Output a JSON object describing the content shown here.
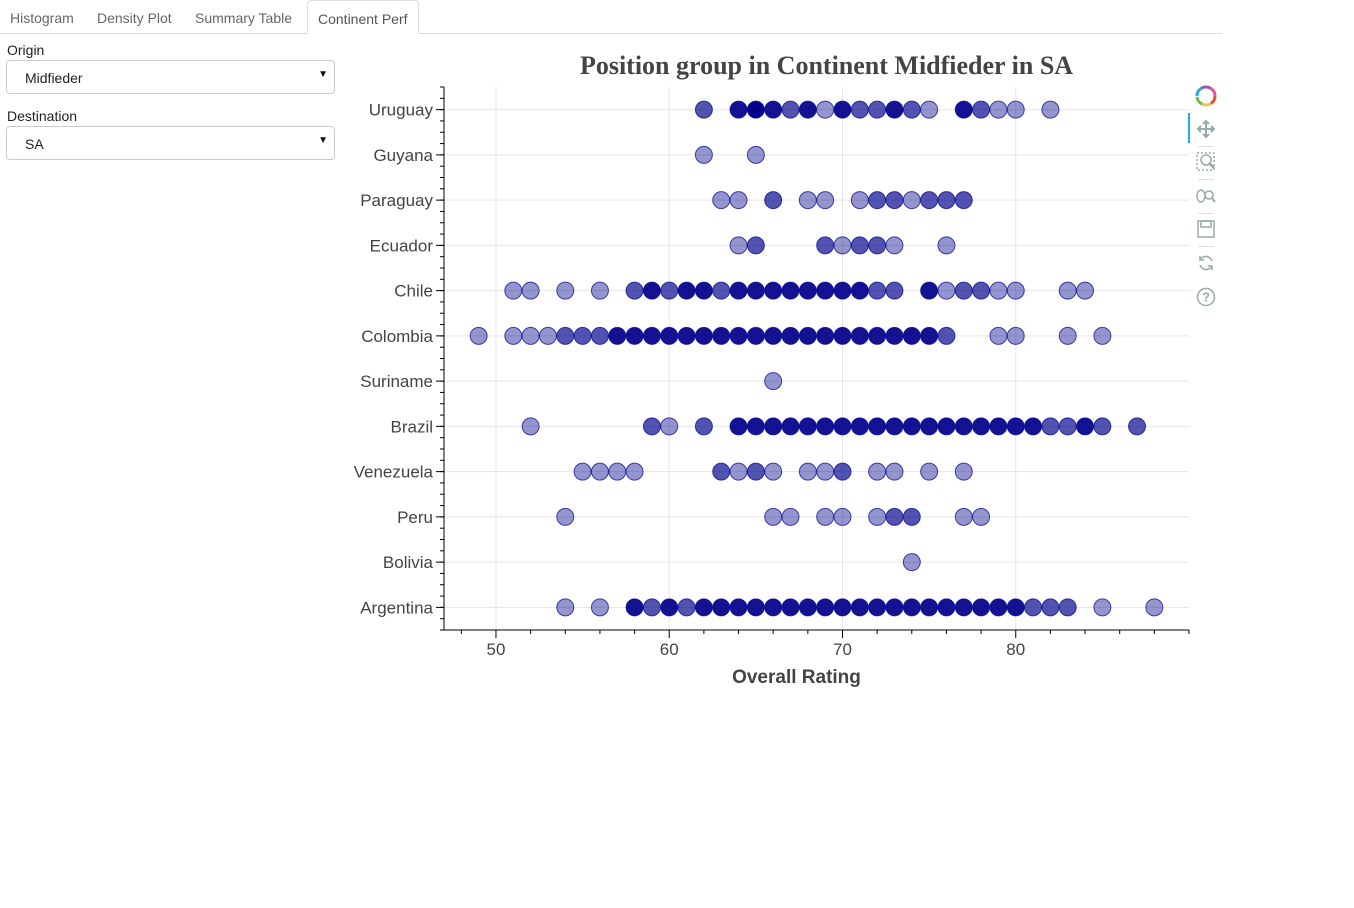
{
  "tabs": [
    {
      "label": "Histogram",
      "active": false
    },
    {
      "label": "Density Plot",
      "active": false
    },
    {
      "label": "Summary Table",
      "active": false
    },
    {
      "label": "Continent Perf",
      "active": true
    }
  ],
  "controls": {
    "origin_label": "Origin",
    "origin_value": "Midfieder",
    "destination_label": "Destination",
    "destination_value": "SA"
  },
  "toolbar": {
    "icons": [
      "bokeh-logo-icon",
      "pan-icon",
      "box-zoom-icon",
      "wheel-zoom-icon",
      "save-icon",
      "reset-icon",
      "help-icon"
    ]
  },
  "colors": {
    "point": "#00008b",
    "axis": "#000000",
    "grid": "#e5e5e5"
  },
  "chart_data": {
    "type": "scatter",
    "title": "Position group in Continent  Midfieder in SA",
    "xlabel": "Overall Rating",
    "ylabel": "",
    "xlim": [
      47,
      90
    ],
    "xticks": [
      50,
      60,
      70,
      80
    ],
    "categories": [
      "Argentina",
      "Bolivia",
      "Peru",
      "Venezuela",
      "Brazil",
      "Suriname",
      "Colombia",
      "Chile",
      "Ecuador",
      "Paraguay",
      "Guyana",
      "Uruguay"
    ],
    "series": [
      {
        "category": "Uruguay",
        "values": [
          [
            62,
            2
          ],
          [
            64,
            3
          ],
          [
            65,
            4
          ],
          [
            66,
            3
          ],
          [
            67,
            2
          ],
          [
            68,
            3
          ],
          [
            69,
            1
          ],
          [
            70,
            3
          ],
          [
            71,
            2
          ],
          [
            72,
            2
          ],
          [
            73,
            3
          ],
          [
            74,
            2
          ],
          [
            75,
            1
          ],
          [
            77,
            3
          ],
          [
            78,
            2
          ],
          [
            79,
            1
          ],
          [
            80,
            1
          ],
          [
            82,
            1
          ]
        ]
      },
      {
        "category": "Guyana",
        "values": [
          [
            62,
            1
          ],
          [
            65,
            1
          ]
        ]
      },
      {
        "category": "Paraguay",
        "values": [
          [
            63,
            1
          ],
          [
            64,
            1
          ],
          [
            66,
            2
          ],
          [
            68,
            1
          ],
          [
            69,
            1
          ],
          [
            71,
            1
          ],
          [
            72,
            2
          ],
          [
            73,
            2
          ],
          [
            74,
            1
          ],
          [
            75,
            2
          ],
          [
            76,
            2
          ],
          [
            77,
            2
          ]
        ]
      },
      {
        "category": "Ecuador",
        "values": [
          [
            64,
            1
          ],
          [
            65,
            2
          ],
          [
            69,
            2
          ],
          [
            70,
            1
          ],
          [
            71,
            2
          ],
          [
            72,
            2
          ],
          [
            73,
            1
          ],
          [
            76,
            1
          ]
        ]
      },
      {
        "category": "Chile",
        "values": [
          [
            51,
            1
          ],
          [
            52,
            1
          ],
          [
            54,
            1
          ],
          [
            56,
            1
          ],
          [
            58,
            2
          ],
          [
            59,
            3
          ],
          [
            60,
            2
          ],
          [
            61,
            3
          ],
          [
            62,
            3
          ],
          [
            63,
            2
          ],
          [
            64,
            3
          ],
          [
            65,
            3
          ],
          [
            66,
            3
          ],
          [
            67,
            3
          ],
          [
            68,
            3
          ],
          [
            69,
            3
          ],
          [
            70,
            3
          ],
          [
            71,
            3
          ],
          [
            72,
            2
          ],
          [
            73,
            2
          ],
          [
            75,
            3
          ],
          [
            76,
            1
          ],
          [
            77,
            2
          ],
          [
            78,
            2
          ],
          [
            79,
            1
          ],
          [
            80,
            1
          ],
          [
            83,
            1
          ],
          [
            84,
            1
          ]
        ]
      },
      {
        "category": "Colombia",
        "values": [
          [
            49,
            1
          ],
          [
            51,
            1
          ],
          [
            52,
            1
          ],
          [
            53,
            1
          ],
          [
            54,
            2
          ],
          [
            55,
            2
          ],
          [
            56,
            2
          ],
          [
            57,
            3
          ],
          [
            58,
            3
          ],
          [
            59,
            3
          ],
          [
            60,
            3
          ],
          [
            61,
            3
          ],
          [
            62,
            3
          ],
          [
            63,
            3
          ],
          [
            64,
            3
          ],
          [
            65,
            3
          ],
          [
            66,
            3
          ],
          [
            67,
            3
          ],
          [
            68,
            3
          ],
          [
            69,
            3
          ],
          [
            70,
            3
          ],
          [
            71,
            3
          ],
          [
            72,
            3
          ],
          [
            73,
            3
          ],
          [
            74,
            3
          ],
          [
            75,
            3
          ],
          [
            76,
            2
          ],
          [
            79,
            1
          ],
          [
            80,
            1
          ],
          [
            83,
            1
          ],
          [
            85,
            1
          ]
        ]
      },
      {
        "category": "Suriname",
        "values": [
          [
            66,
            1
          ]
        ]
      },
      {
        "category": "Brazil",
        "values": [
          [
            52,
            1
          ],
          [
            59,
            2
          ],
          [
            60,
            1
          ],
          [
            62,
            2
          ],
          [
            64,
            3
          ],
          [
            65,
            3
          ],
          [
            66,
            3
          ],
          [
            67,
            3
          ],
          [
            68,
            3
          ],
          [
            69,
            3
          ],
          [
            70,
            3
          ],
          [
            71,
            3
          ],
          [
            72,
            3
          ],
          [
            73,
            3
          ],
          [
            74,
            3
          ],
          [
            75,
            3
          ],
          [
            76,
            3
          ],
          [
            77,
            3
          ],
          [
            78,
            3
          ],
          [
            79,
            3
          ],
          [
            80,
            3
          ],
          [
            81,
            3
          ],
          [
            82,
            2
          ],
          [
            83,
            2
          ],
          [
            84,
            3
          ],
          [
            85,
            2
          ],
          [
            87,
            2
          ]
        ]
      },
      {
        "category": "Venezuela",
        "values": [
          [
            55,
            1
          ],
          [
            56,
            1
          ],
          [
            57,
            1
          ],
          [
            58,
            1
          ],
          [
            63,
            2
          ],
          [
            64,
            1
          ],
          [
            65,
            2
          ],
          [
            66,
            1
          ],
          [
            68,
            1
          ],
          [
            69,
            1
          ],
          [
            70,
            2
          ],
          [
            72,
            1
          ],
          [
            73,
            1
          ],
          [
            75,
            1
          ],
          [
            77,
            1
          ]
        ]
      },
      {
        "category": "Peru",
        "values": [
          [
            54,
            1
          ],
          [
            66,
            1
          ],
          [
            67,
            1
          ],
          [
            69,
            1
          ],
          [
            70,
            1
          ],
          [
            72,
            1
          ],
          [
            73,
            2
          ],
          [
            74,
            2
          ],
          [
            77,
            1
          ],
          [
            78,
            1
          ]
        ]
      },
      {
        "category": "Bolivia",
        "values": [
          [
            74,
            1
          ]
        ]
      },
      {
        "category": "Argentina",
        "values": [
          [
            54,
            1
          ],
          [
            56,
            1
          ],
          [
            58,
            3
          ],
          [
            59,
            2
          ],
          [
            60,
            3
          ],
          [
            61,
            2
          ],
          [
            62,
            3
          ],
          [
            63,
            3
          ],
          [
            64,
            3
          ],
          [
            65,
            3
          ],
          [
            66,
            3
          ],
          [
            67,
            3
          ],
          [
            68,
            3
          ],
          [
            69,
            3
          ],
          [
            70,
            3
          ],
          [
            71,
            3
          ],
          [
            72,
            3
          ],
          [
            73,
            3
          ],
          [
            74,
            3
          ],
          [
            75,
            3
          ],
          [
            76,
            3
          ],
          [
            77,
            3
          ],
          [
            78,
            3
          ],
          [
            79,
            3
          ],
          [
            80,
            3
          ],
          [
            81,
            2
          ],
          [
            82,
            2
          ],
          [
            83,
            2
          ],
          [
            85,
            1
          ],
          [
            88,
            1
          ]
        ]
      }
    ],
    "point_overlap_levels": {
      "1": "single",
      "2": "double",
      "3": "many"
    },
    "grid": true,
    "legend": "none"
  }
}
